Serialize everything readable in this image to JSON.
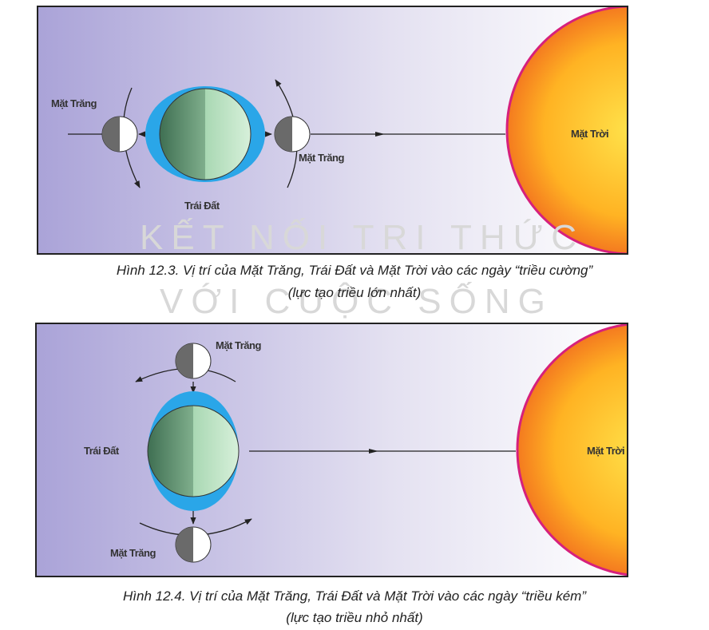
{
  "watermark": {
    "line1": "KẾT NỐI TRI THỨC",
    "line2": "VỚI CUỘC SỐNG"
  },
  "figures": [
    {
      "labels": {
        "moon_left": "Mặt Trăng",
        "moon_right": "Mặt Trăng",
        "earth": "Trái Đất",
        "sun": "Mặt Trời"
      },
      "caption": [
        "Hình 12.3. Vị trí của Mặt Trăng, Trái Đất và Mặt Trời vào các ngày “triều cường”",
        "(lực tạo triều lớn nhất)"
      ]
    },
    {
      "labels": {
        "moon_top": "Mặt Trăng",
        "moon_bottom": "Mặt Trăng",
        "earth": "Trái Đất",
        "sun": "Mặt Trời"
      },
      "caption": [
        "Hình 12.4. Vị trí của Mặt Trăng, Trái Đất và Mặt Trời vào các ngày “triều kém”",
        "(lực tạo triều nhỏ nhất)"
      ]
    }
  ]
}
